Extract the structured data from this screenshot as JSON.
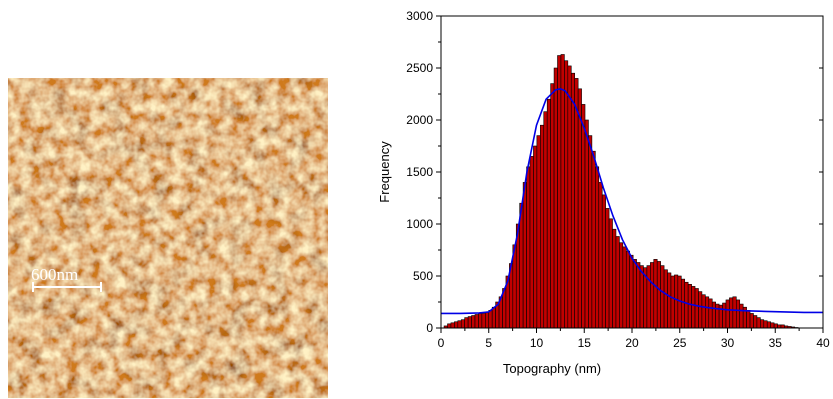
{
  "image_panel": {
    "scale_label": "600nm"
  },
  "chart_data": {
    "type": "bar",
    "xlabel": "Topography (nm)",
    "ylabel": "Frequency",
    "xlim": [
      0,
      40
    ],
    "ylim": [
      0,
      3000
    ],
    "xticks": [
      0,
      5,
      10,
      15,
      20,
      25,
      30,
      35,
      40
    ],
    "yticks": [
      0,
      500,
      1000,
      1500,
      2000,
      2500,
      3000
    ],
    "grid": false,
    "legend": "none",
    "bin_width": 0.36,
    "bins": [
      {
        "x": 0.5,
        "y": 20
      },
      {
        "x": 0.86,
        "y": 40
      },
      {
        "x": 1.22,
        "y": 50
      },
      {
        "x": 1.58,
        "y": 60
      },
      {
        "x": 1.94,
        "y": 70
      },
      {
        "x": 2.3,
        "y": 80
      },
      {
        "x": 2.66,
        "y": 100
      },
      {
        "x": 3.02,
        "y": 110
      },
      {
        "x": 3.38,
        "y": 120
      },
      {
        "x": 3.74,
        "y": 130
      },
      {
        "x": 4.1,
        "y": 140
      },
      {
        "x": 4.46,
        "y": 140
      },
      {
        "x": 4.82,
        "y": 150
      },
      {
        "x": 5.18,
        "y": 170
      },
      {
        "x": 5.54,
        "y": 200
      },
      {
        "x": 5.9,
        "y": 250
      },
      {
        "x": 6.26,
        "y": 300
      },
      {
        "x": 6.62,
        "y": 380
      },
      {
        "x": 6.98,
        "y": 500
      },
      {
        "x": 7.34,
        "y": 620
      },
      {
        "x": 7.7,
        "y": 800
      },
      {
        "x": 8.06,
        "y": 1000
      },
      {
        "x": 8.42,
        "y": 1200
      },
      {
        "x": 8.78,
        "y": 1400
      },
      {
        "x": 9.14,
        "y": 1550
      },
      {
        "x": 9.5,
        "y": 1650
      },
      {
        "x": 9.86,
        "y": 1750
      },
      {
        "x": 10.22,
        "y": 1850
      },
      {
        "x": 10.58,
        "y": 1950
      },
      {
        "x": 10.94,
        "y": 2080
      },
      {
        "x": 11.3,
        "y": 2200
      },
      {
        "x": 11.66,
        "y": 2350
      },
      {
        "x": 12.02,
        "y": 2500
      },
      {
        "x": 12.38,
        "y": 2620
      },
      {
        "x": 12.74,
        "y": 2630
      },
      {
        "x": 13.1,
        "y": 2570
      },
      {
        "x": 13.46,
        "y": 2520
      },
      {
        "x": 13.82,
        "y": 2450
      },
      {
        "x": 14.18,
        "y": 2400
      },
      {
        "x": 14.54,
        "y": 2300
      },
      {
        "x": 14.9,
        "y": 2150
      },
      {
        "x": 15.26,
        "y": 2000
      },
      {
        "x": 15.62,
        "y": 1850
      },
      {
        "x": 15.98,
        "y": 1700
      },
      {
        "x": 16.34,
        "y": 1550
      },
      {
        "x": 16.7,
        "y": 1400
      },
      {
        "x": 17.06,
        "y": 1280
      },
      {
        "x": 17.42,
        "y": 1150
      },
      {
        "x": 17.78,
        "y": 1050
      },
      {
        "x": 18.14,
        "y": 950
      },
      {
        "x": 18.5,
        "y": 880
      },
      {
        "x": 18.86,
        "y": 820
      },
      {
        "x": 19.22,
        "y": 780
      },
      {
        "x": 19.58,
        "y": 740
      },
      {
        "x": 19.94,
        "y": 700
      },
      {
        "x": 20.3,
        "y": 660
      },
      {
        "x": 20.66,
        "y": 630
      },
      {
        "x": 21.02,
        "y": 600
      },
      {
        "x": 21.38,
        "y": 580
      },
      {
        "x": 21.74,
        "y": 600
      },
      {
        "x": 22.1,
        "y": 630
      },
      {
        "x": 22.46,
        "y": 660
      },
      {
        "x": 22.82,
        "y": 640
      },
      {
        "x": 23.18,
        "y": 600
      },
      {
        "x": 23.54,
        "y": 560
      },
      {
        "x": 23.9,
        "y": 530
      },
      {
        "x": 24.26,
        "y": 500
      },
      {
        "x": 24.62,
        "y": 510
      },
      {
        "x": 24.98,
        "y": 500
      },
      {
        "x": 25.34,
        "y": 470
      },
      {
        "x": 25.7,
        "y": 440
      },
      {
        "x": 26.06,
        "y": 420
      },
      {
        "x": 26.42,
        "y": 400
      },
      {
        "x": 26.78,
        "y": 380
      },
      {
        "x": 27.14,
        "y": 350
      },
      {
        "x": 27.5,
        "y": 320
      },
      {
        "x": 27.86,
        "y": 300
      },
      {
        "x": 28.22,
        "y": 280
      },
      {
        "x": 28.58,
        "y": 250
      },
      {
        "x": 28.94,
        "y": 230
      },
      {
        "x": 29.3,
        "y": 220
      },
      {
        "x": 29.66,
        "y": 240
      },
      {
        "x": 30.02,
        "y": 270
      },
      {
        "x": 30.38,
        "y": 290
      },
      {
        "x": 30.74,
        "y": 300
      },
      {
        "x": 31.1,
        "y": 270
      },
      {
        "x": 31.46,
        "y": 230
      },
      {
        "x": 31.82,
        "y": 200
      },
      {
        "x": 32.18,
        "y": 170
      },
      {
        "x": 32.54,
        "y": 140
      },
      {
        "x": 32.9,
        "y": 120
      },
      {
        "x": 33.26,
        "y": 100
      },
      {
        "x": 33.62,
        "y": 80
      },
      {
        "x": 33.98,
        "y": 70
      },
      {
        "x": 34.34,
        "y": 60
      },
      {
        "x": 34.7,
        "y": 50
      },
      {
        "x": 35.06,
        "y": 40
      },
      {
        "x": 35.42,
        "y": 30
      },
      {
        "x": 35.78,
        "y": 30
      },
      {
        "x": 36.14,
        "y": 20
      },
      {
        "x": 36.5,
        "y": 15
      },
      {
        "x": 36.86,
        "y": 10
      },
      {
        "x": 37.22,
        "y": 5
      }
    ],
    "fit_curve": {
      "type": "line",
      "x": [
        0,
        2,
        4,
        5,
        6,
        7,
        8,
        9,
        10,
        11,
        12,
        12.5,
        13,
        14,
        15,
        16,
        17,
        18,
        19,
        20,
        21,
        22,
        23,
        24,
        25,
        26,
        27,
        28,
        29,
        30,
        32,
        34,
        36,
        38,
        40
      ],
      "y": [
        140,
        140,
        145,
        155,
        230,
        450,
        900,
        1500,
        1950,
        2200,
        2290,
        2300,
        2280,
        2150,
        1920,
        1650,
        1350,
        1080,
        850,
        670,
        540,
        440,
        360,
        300,
        260,
        230,
        210,
        195,
        185,
        175,
        165,
        160,
        155,
        150,
        150
      ]
    },
    "colors": {
      "bar_fill": "#c10000",
      "bar_edge": "#000000",
      "fit_line": "#0000e6"
    }
  }
}
